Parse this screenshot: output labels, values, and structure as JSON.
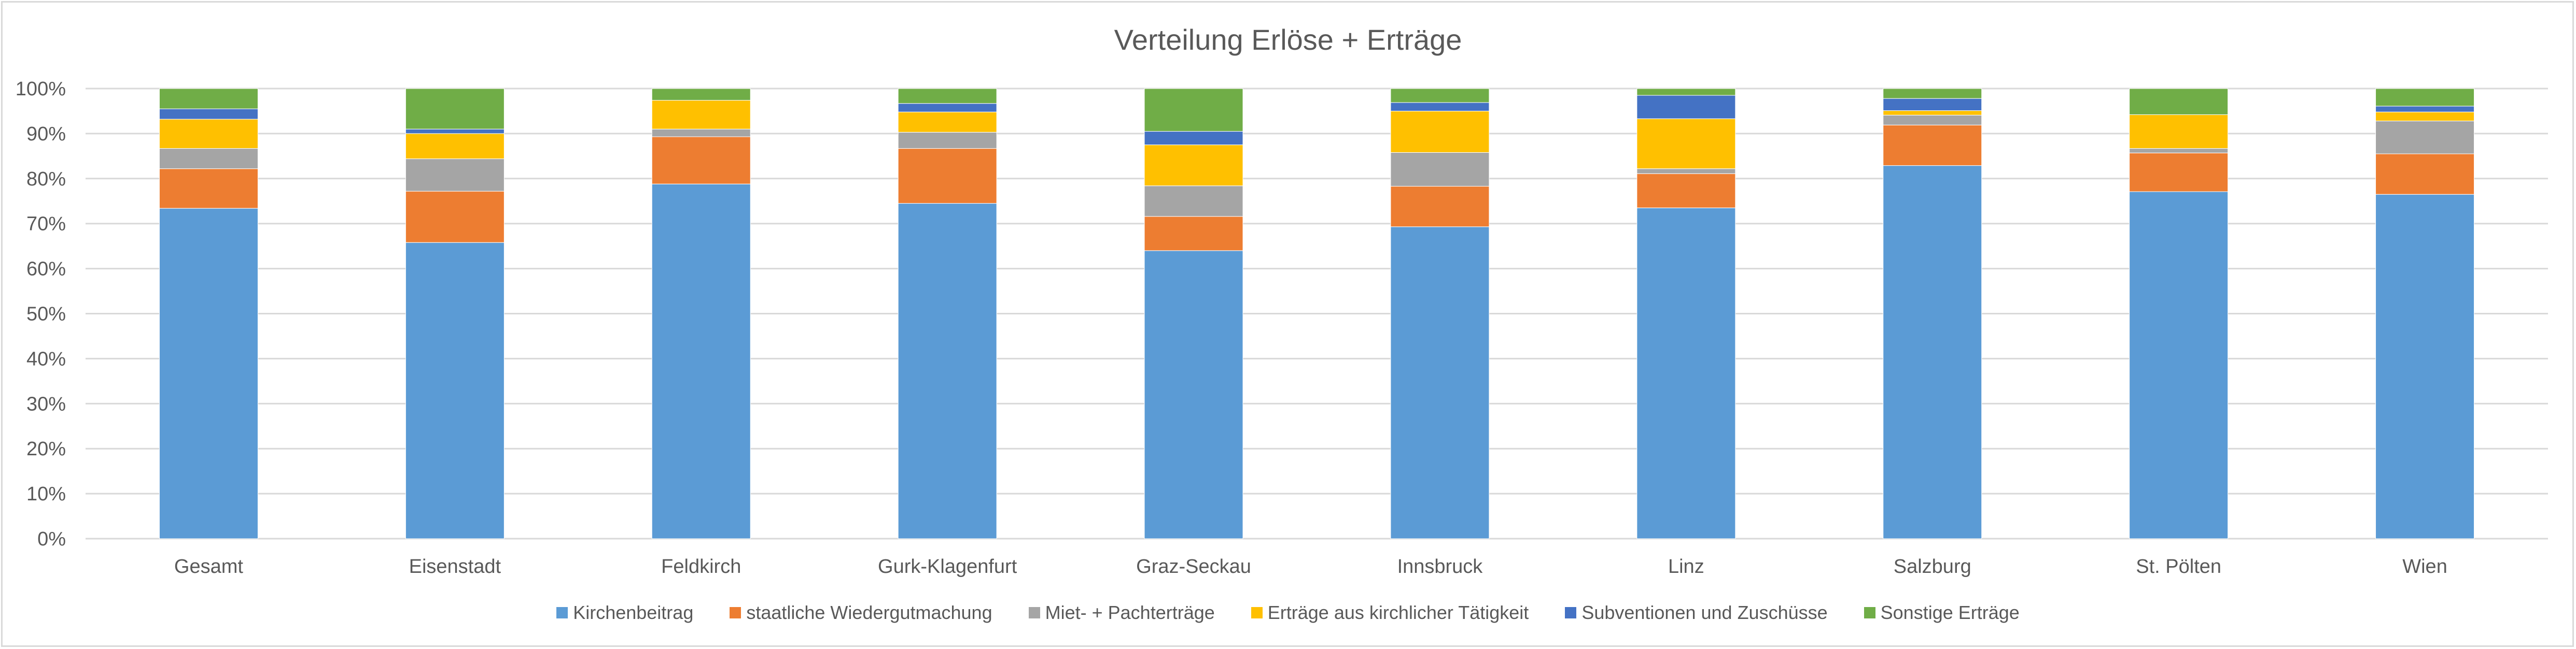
{
  "chart_data": {
    "type": "bar",
    "stacked": true,
    "title": "Verteilung Erlöse + Erträge",
    "xlabel": "",
    "ylabel": "",
    "ylim": [
      0,
      100
    ],
    "yticks": [
      "0%",
      "10%",
      "20%",
      "30%",
      "40%",
      "50%",
      "60%",
      "70%",
      "80%",
      "90%",
      "100%"
    ],
    "grid": true,
    "legend_position": "bottom",
    "categories": [
      "Gesamt",
      "Eisenstadt",
      "Feldkirch",
      "Gurk-Klagenfurt",
      "Graz-Seckau",
      "Innsbruck",
      "Linz",
      "Salzburg",
      "St. Pölten",
      "Wien"
    ],
    "series": [
      {
        "name": "Kirchenbeitrag",
        "color": "#5B9BD5",
        "values": [
          73.4,
          65.8,
          78.8,
          74.5,
          64.0,
          69.3,
          73.5,
          82.9,
          77.1,
          76.5
        ]
      },
      {
        "name": "staatliche Wiedergutmachung",
        "color": "#ED7D31",
        "values": [
          8.8,
          11.4,
          10.5,
          12.2,
          7.6,
          9.0,
          7.6,
          9.0,
          8.6,
          9.0
        ]
      },
      {
        "name": "Miet- + Pachterträge",
        "color": "#A5A5A5",
        "values": [
          4.5,
          7.2,
          1.7,
          3.6,
          6.8,
          7.5,
          1.1,
          2.2,
          1.0,
          7.3
        ]
      },
      {
        "name": "Erträge aus kirchlicher Tätigkeit",
        "color": "#FFC000",
        "values": [
          6.5,
          5.6,
          6.4,
          4.5,
          9.1,
          9.2,
          11.1,
          1.0,
          7.5,
          2.0
        ]
      },
      {
        "name": "Subventionen und Zuschüsse",
        "color": "#4472C4",
        "values": [
          2.3,
          1.0,
          0.0,
          1.9,
          3.0,
          1.9,
          5.2,
          2.7,
          0.0,
          1.3
        ]
      },
      {
        "name": "Sonstige Erträge",
        "color": "#70AD47",
        "values": [
          4.5,
          9.0,
          2.6,
          3.3,
          9.5,
          3.1,
          1.5,
          2.2,
          5.8,
          3.9
        ]
      }
    ]
  }
}
